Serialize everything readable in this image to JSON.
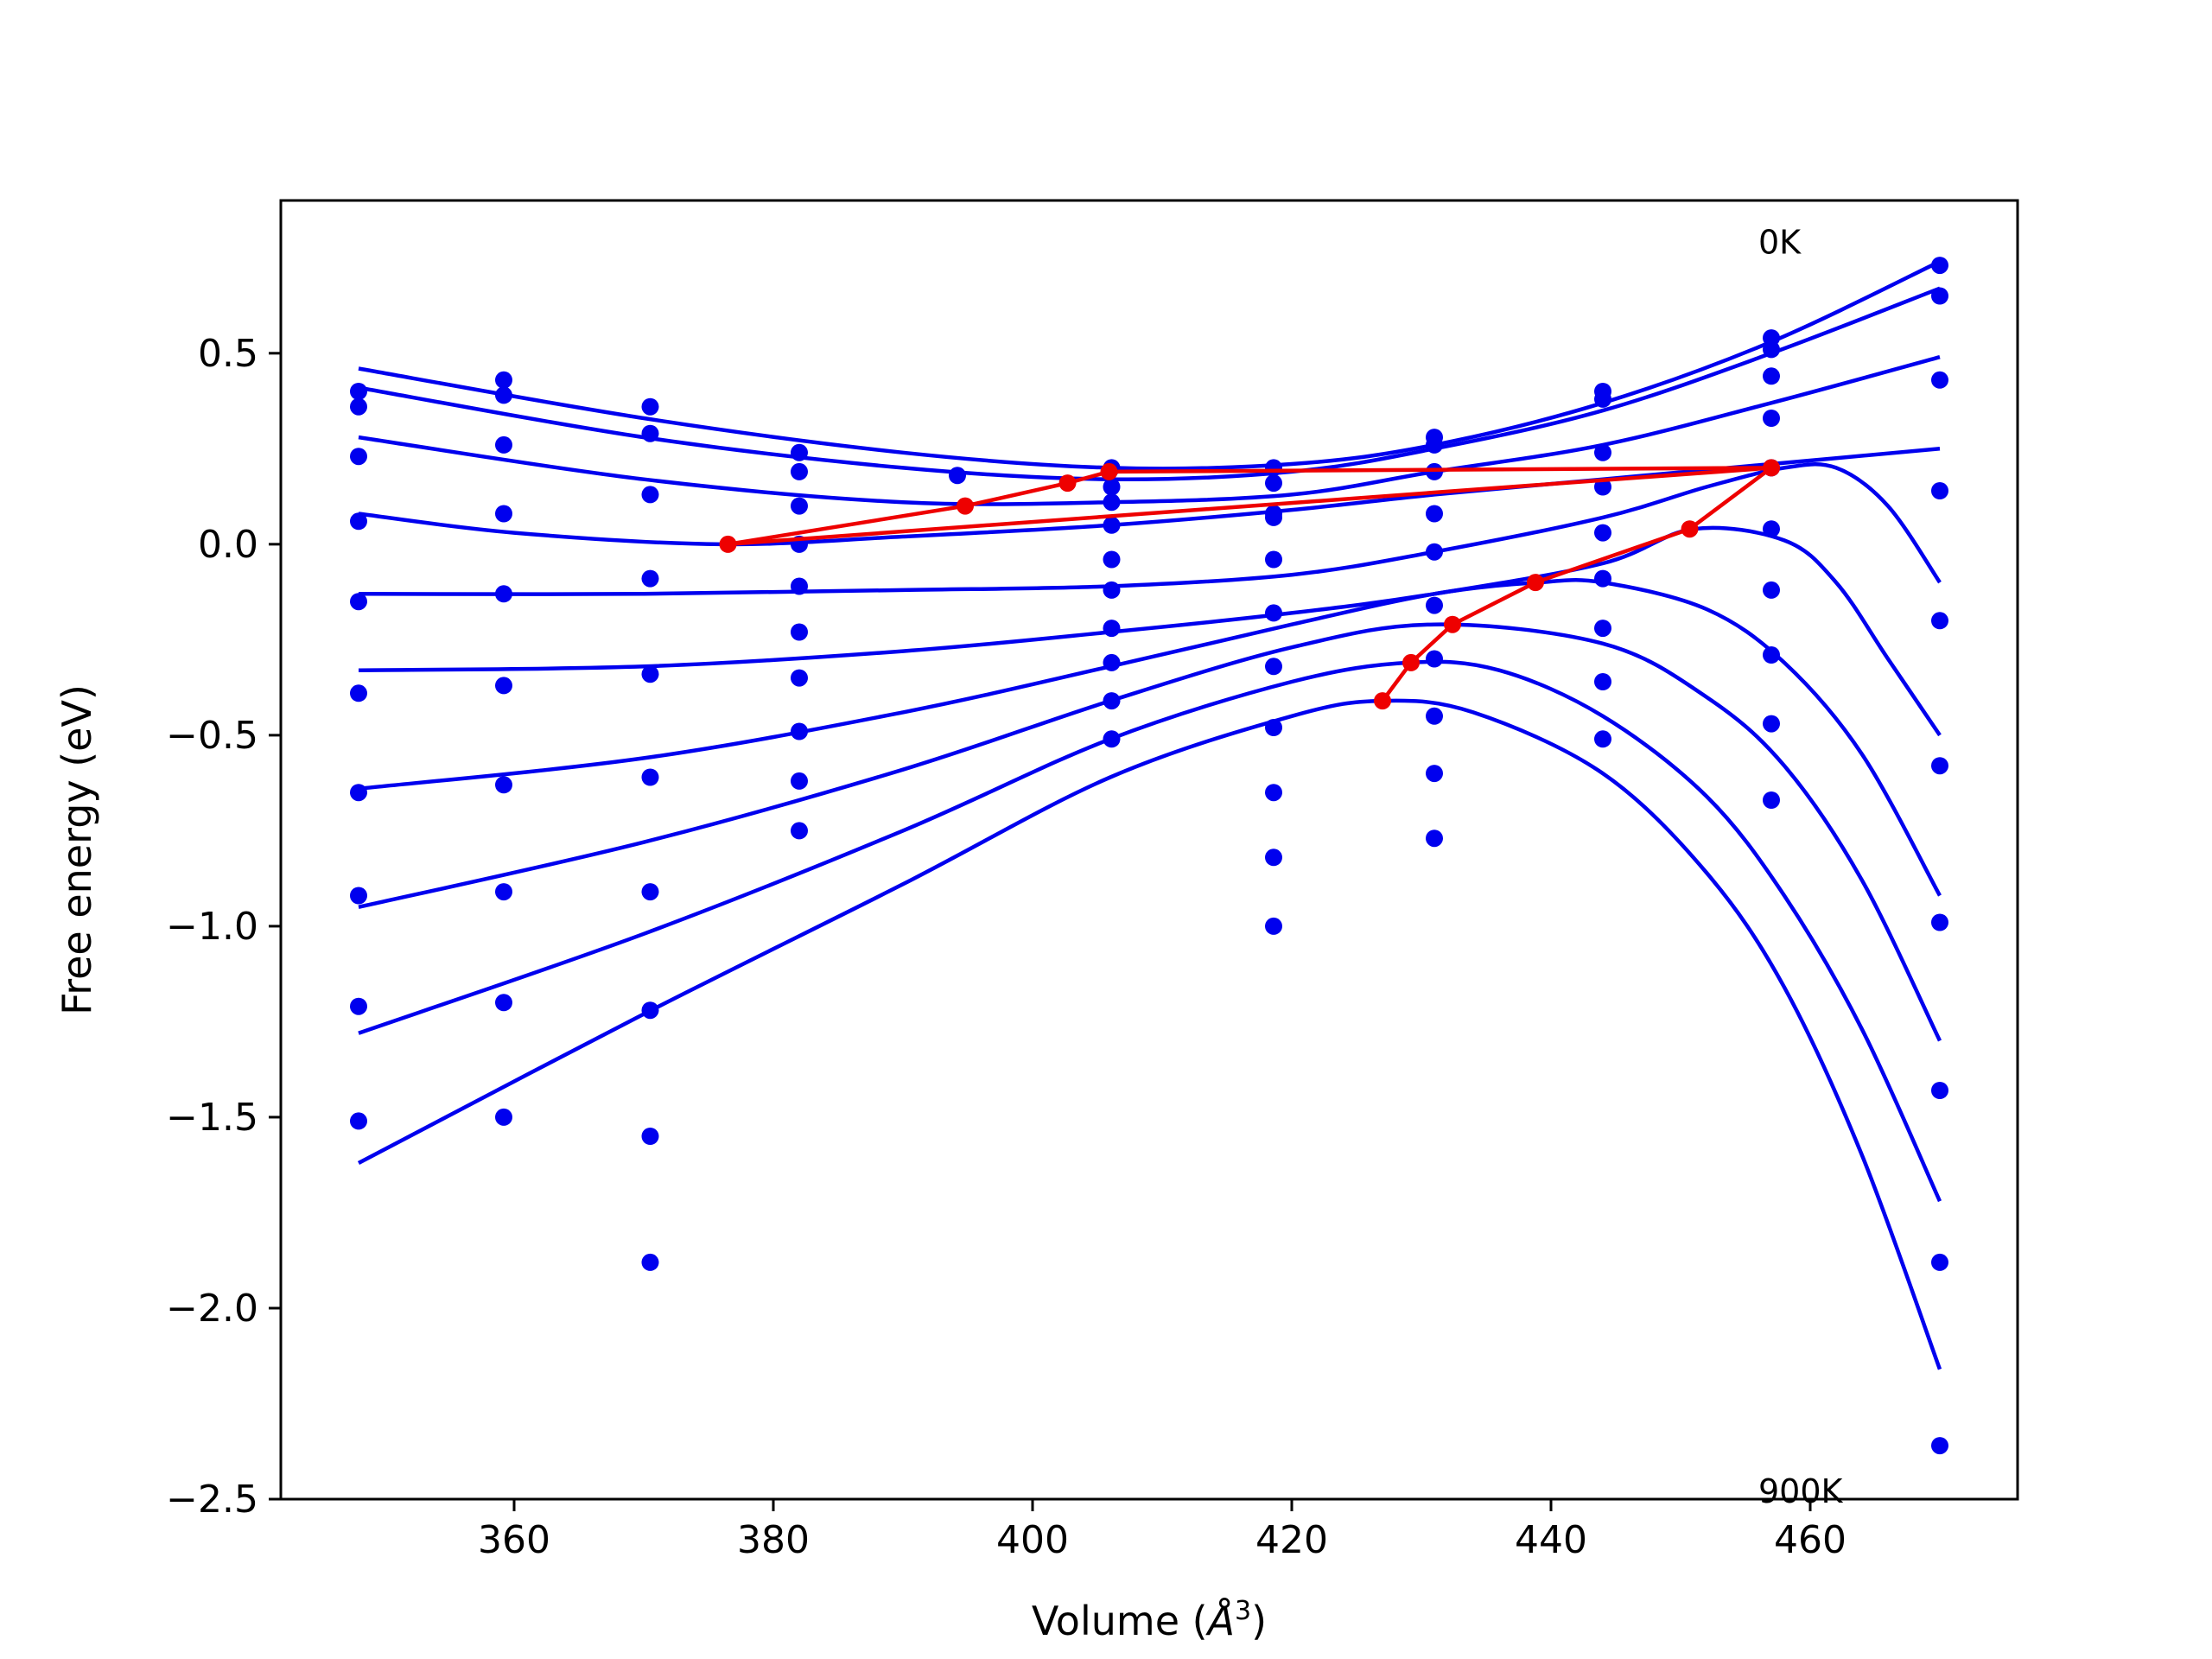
{
  "chart_data": {
    "type": "line",
    "title": "",
    "xlabel_prefix": "Volume (",
    "xlabel_symbol": "Å",
    "xlabel_exp": "3",
    "xlabel_suffix": ")",
    "ylabel": "Free energy (eV)",
    "xlim": [
      342,
      476
    ],
    "ylim": [
      -2.5,
      0.9
    ],
    "xticks": [
      360,
      380,
      400,
      420,
      440,
      460
    ],
    "yticks": [
      0.5,
      0.0,
      -0.5,
      -1.0,
      -1.5,
      -2.0,
      -2.5
    ],
    "xtick_labels": [
      "360",
      "380",
      "400",
      "420",
      "440",
      "460"
    ],
    "ytick_labels": [
      "0.5",
      "0.0",
      "−0.5",
      "−1.0",
      "−1.5",
      "−2.0",
      "−2.5"
    ],
    "grid": false,
    "legend": "none",
    "annotations": [
      {
        "text": "0K",
        "x": 456.0,
        "y": 0.79
      },
      {
        "text": "900K",
        "x": 456.0,
        "y": -2.48
      }
    ],
    "colors": {
      "curves": "#0000ee",
      "min_path": "#ee0000",
      "axes": "#000000"
    },
    "volumes": [
      348.0,
      359.2,
      370.5,
      382.0,
      394.2,
      406.1,
      418.6,
      431.0,
      444.0,
      457.0,
      470.0
    ],
    "series": [
      {
        "temperature_index": 0,
        "points": [
          0.4,
          0.43,
          0.36,
          0.24,
          0.18,
          0.2,
          0.2,
          0.28,
          0.4,
          0.54,
          0.73
        ],
        "fit": [
          [
            348,
            0.46
          ],
          [
            370,
            0.33
          ],
          [
            390,
            0.24
          ],
          [
            406,
            0.2
          ],
          [
            420,
            0.21
          ],
          [
            431,
            0.26
          ],
          [
            444,
            0.37
          ],
          [
            457,
            0.53
          ],
          [
            470,
            0.74
          ]
        ]
      },
      {
        "temperature_index": 1,
        "points": [
          0.36,
          0.39,
          0.29,
          0.19,
          null,
          0.15,
          0.16,
          0.26,
          0.38,
          0.51,
          0.65
        ],
        "fit": [
          [
            348,
            0.41
          ],
          [
            370,
            0.28
          ],
          [
            390,
            0.2
          ],
          [
            406,
            0.17
          ],
          [
            420,
            0.19
          ],
          [
            431,
            0.25
          ],
          [
            444,
            0.35
          ],
          [
            457,
            0.5
          ],
          [
            470,
            0.67
          ]
        ]
      },
      {
        "temperature_index": 2,
        "points": [
          0.23,
          0.26,
          0.13,
          0.1,
          null,
          0.11,
          0.08,
          0.19,
          0.24,
          0.44,
          0.43
        ],
        "fit": [
          [
            348,
            0.28
          ],
          [
            370,
            0.17
          ],
          [
            390,
            0.11
          ],
          [
            406,
            0.11
          ],
          [
            420,
            0.13
          ],
          [
            431,
            0.19
          ],
          [
            444,
            0.26
          ],
          [
            457,
            0.37
          ],
          [
            470,
            0.49
          ]
        ]
      },
      {
        "temperature_index": 3,
        "points": [
          0.06,
          0.08,
          -0.09,
          0.0,
          null,
          0.05,
          0.07,
          0.08,
          0.15,
          0.33,
          0.14
        ],
        "fit": [
          [
            348,
            0.08
          ],
          [
            360,
            0.03
          ],
          [
            376,
            0.0
          ],
          [
            390,
            0.02
          ],
          [
            406,
            0.05
          ],
          [
            420,
            0.09
          ],
          [
            431,
            0.13
          ],
          [
            444,
            0.17
          ],
          [
            457,
            0.21
          ],
          [
            470,
            0.25
          ]
        ]
      },
      {
        "temperature_index": 4,
        "points": [
          -0.15,
          -0.13,
          -0.34,
          -0.11,
          null,
          -0.04,
          -0.04,
          -0.02,
          0.03,
          0.2,
          -0.2
        ],
        "fit": [
          [
            348,
            -0.13
          ],
          [
            370,
            -0.13
          ],
          [
            390,
            -0.12
          ],
          [
            406,
            -0.11
          ],
          [
            420,
            -0.08
          ],
          [
            431,
            -0.02
          ],
          [
            444,
            0.07
          ],
          [
            452,
            0.15
          ],
          [
            458,
            0.2
          ],
          [
            462,
            0.2
          ],
          [
            466,
            0.1
          ],
          [
            470,
            -0.1
          ]
        ]
      },
      {
        "temperature_index": 5,
        "points": [
          -0.39,
          -0.37,
          -0.61,
          -0.23,
          null,
          -0.12,
          -0.18,
          -0.16,
          -0.09,
          0.04,
          -0.58
        ],
        "fit": [
          [
            348,
            -0.33
          ],
          [
            370,
            -0.32
          ],
          [
            390,
            -0.28
          ],
          [
            406,
            -0.23
          ],
          [
            420,
            -0.18
          ],
          [
            431,
            -0.13
          ],
          [
            444,
            -0.05
          ],
          [
            451,
            0.04
          ],
          [
            458,
            0.01
          ],
          [
            462,
            -0.1
          ],
          [
            466,
            -0.3
          ],
          [
            470,
            -0.5
          ]
        ]
      },
      {
        "temperature_index": 6,
        "points": [
          -0.65,
          -0.63,
          -0.91,
          -0.35,
          null,
          -0.22,
          -0.32,
          -0.3,
          -0.22,
          -0.12,
          -0.99
        ],
        "fit": [
          [
            348,
            -0.64
          ],
          [
            370,
            -0.56
          ],
          [
            390,
            -0.44
          ],
          [
            406,
            -0.32
          ],
          [
            420,
            -0.21
          ],
          [
            431,
            -0.13
          ],
          [
            439,
            -0.1
          ],
          [
            444,
            -0.1
          ],
          [
            452,
            -0.17
          ],
          [
            458,
            -0.31
          ],
          [
            464,
            -0.55
          ],
          [
            470,
            -0.92
          ]
        ]
      },
      {
        "temperature_index": 7,
        "points": [
          -0.92,
          -0.91,
          -1.22,
          -0.49,
          null,
          -0.31,
          -0.48,
          -0.45,
          -0.36,
          -0.29,
          -1.43
        ],
        "fit": [
          [
            348,
            -0.95
          ],
          [
            370,
            -0.78
          ],
          [
            390,
            -0.59
          ],
          [
            406,
            -0.41
          ],
          [
            420,
            -0.27
          ],
          [
            431,
            -0.21
          ],
          [
            444,
            -0.26
          ],
          [
            452,
            -0.4
          ],
          [
            458,
            -0.58
          ],
          [
            464,
            -0.88
          ],
          [
            470,
            -1.3
          ]
        ]
      },
      {
        "temperature_index": 8,
        "points": [
          -1.21,
          -1.2,
          -1.55,
          -0.62,
          null,
          -0.41,
          -0.65,
          -0.6,
          -0.51,
          -0.47,
          -1.88
        ],
        "fit": [
          [
            348,
            -1.28
          ],
          [
            370,
            -1.02
          ],
          [
            390,
            -0.75
          ],
          [
            406,
            -0.51
          ],
          [
            420,
            -0.36
          ],
          [
            429,
            -0.31
          ],
          [
            436,
            -0.33
          ],
          [
            444,
            -0.45
          ],
          [
            452,
            -0.66
          ],
          [
            458,
            -0.92
          ],
          [
            464,
            -1.27
          ],
          [
            470,
            -1.72
          ]
        ]
      },
      {
        "temperature_index": 9,
        "points": [
          -1.51,
          -1.5,
          -1.88,
          -0.75,
          null,
          -0.51,
          -0.82,
          -0.77,
          null,
          -0.67,
          -2.36
        ],
        "fit": [
          [
            348,
            -1.62
          ],
          [
            370,
            -1.23
          ],
          [
            390,
            -0.89
          ],
          [
            406,
            -0.61
          ],
          [
            420,
            -0.45
          ],
          [
            427,
            -0.41
          ],
          [
            434,
            -0.44
          ],
          [
            444,
            -0.6
          ],
          [
            452,
            -0.86
          ],
          [
            458,
            -1.16
          ],
          [
            464,
            -1.6
          ],
          [
            470,
            -2.16
          ]
        ]
      },
      {
        "temperature_index": 10,
        "points": [
          null,
          null,
          null,
          null,
          null,
          null,
          -1.0,
          null,
          null,
          null,
          null
        ],
        "fit": []
      }
    ],
    "min_path": {
      "x": [
        376.5,
        394.8,
        402.7,
        405.9,
        457.0,
        450.7,
        438.8,
        432.4,
        429.2,
        427.0
      ],
      "y": [
        0.0,
        0.1,
        0.16,
        0.19,
        0.2,
        0.04,
        -0.1,
        -0.21,
        -0.31,
        -0.41
      ]
    },
    "tie_line": {
      "x": [
        376.5,
        457.0
      ],
      "y": [
        0.0,
        0.2
      ]
    }
  }
}
